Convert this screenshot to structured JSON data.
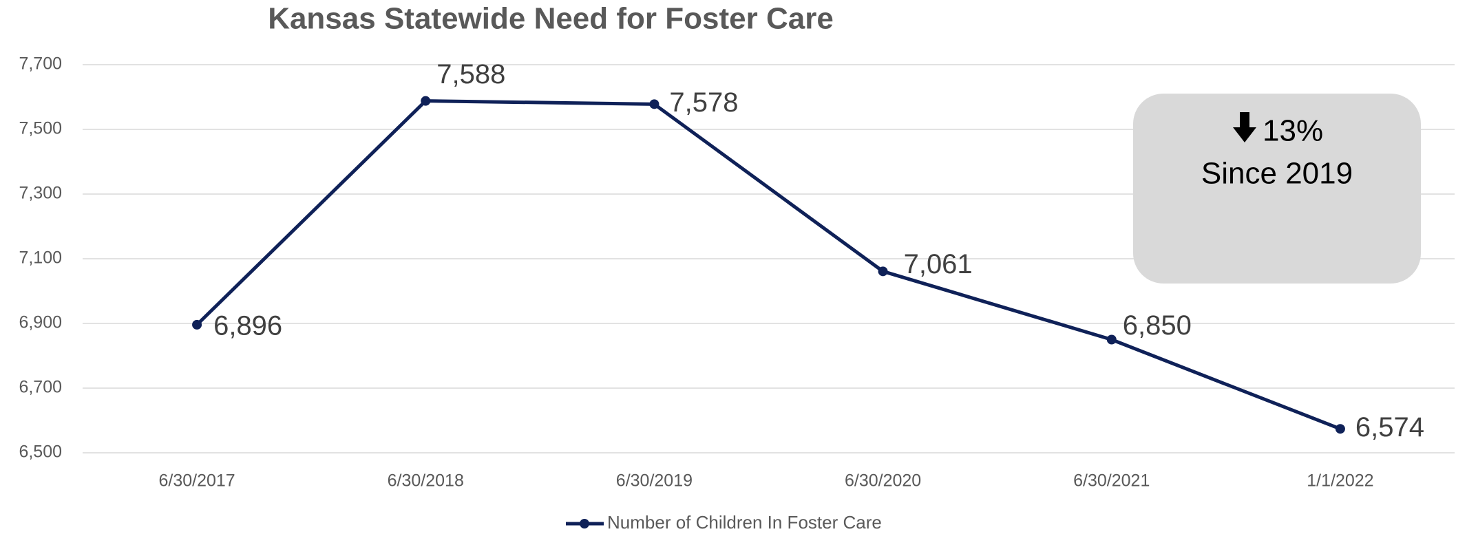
{
  "chart_data": {
    "type": "line",
    "title": "Kansas Statewide Need for Foster Care",
    "categories": [
      "6/30/2017",
      "6/30/2018",
      "6/30/2019",
      "6/30/2020",
      "6/30/2021",
      "1/1/2022"
    ],
    "series": [
      {
        "name": "Number of Children In Foster Care",
        "color": "#0f2158",
        "values": [
          6896,
          7588,
          7578,
          7061,
          6850,
          6574
        ],
        "value_labels": [
          "6,896",
          "7,588",
          "7,578",
          "7,061",
          "6,850",
          "6,574"
        ]
      }
    ],
    "ylim": [
      6500,
      7700
    ],
    "yticks": [
      {
        "value": 6500,
        "label": "6,500"
      },
      {
        "value": 6700,
        "label": "6,700"
      },
      {
        "value": 6900,
        "label": "6,900"
      },
      {
        "value": 7100,
        "label": "7,100"
      },
      {
        "value": 7300,
        "label": "7,300"
      },
      {
        "value": 7500,
        "label": "7,500"
      },
      {
        "value": 7700,
        "label": "7,700"
      }
    ],
    "grid": true,
    "legend": "bottom",
    "annotations": [
      "13%",
      "Since 2019"
    ]
  }
}
